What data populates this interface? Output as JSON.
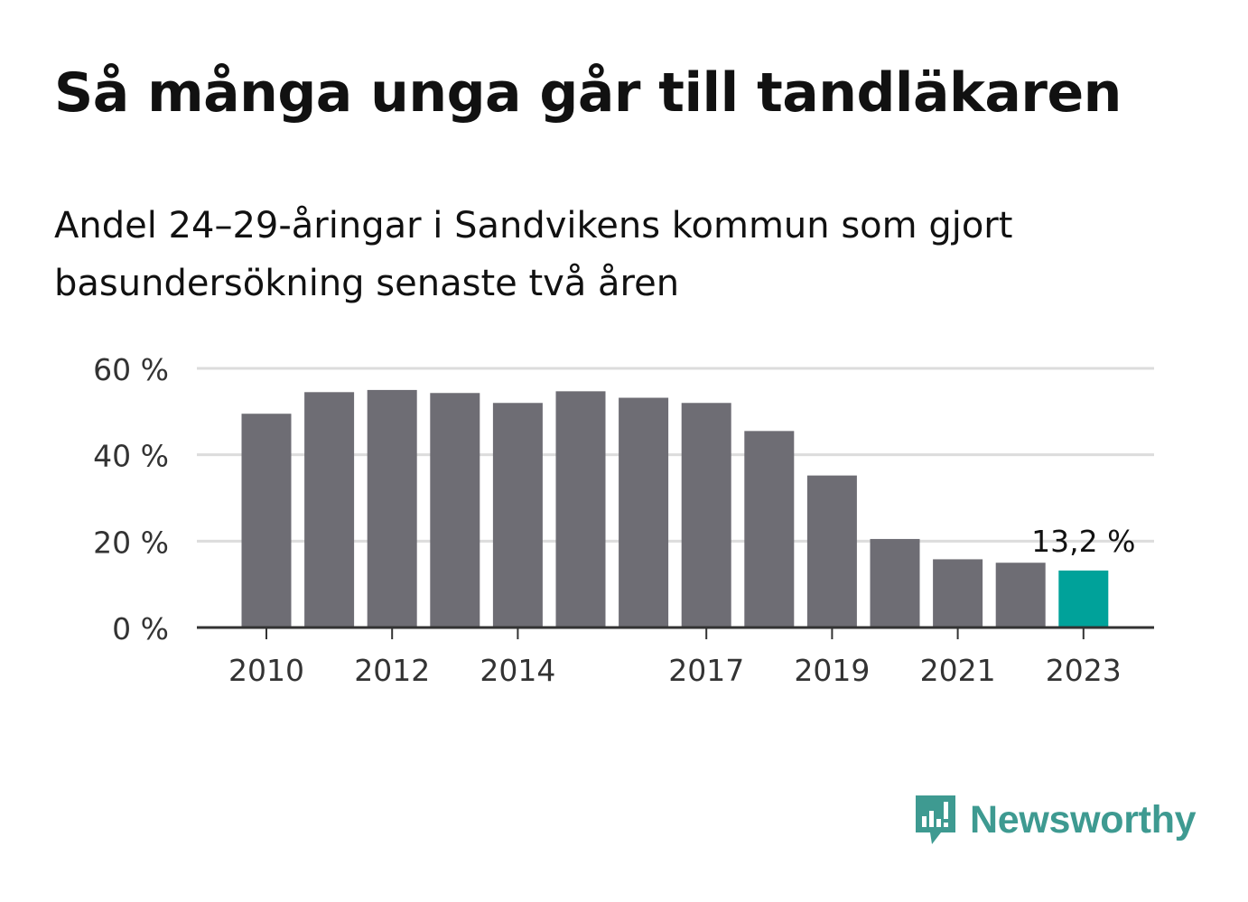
{
  "title": "Så många unga går till tandläkaren",
  "subtitle": "Andel 24–29-åringar i Sandvikens kommun som gjort basundersökning senaste två åren",
  "brand": {
    "name": "Newsworthy",
    "color": "#3e9a91",
    "icon": "newsworthy-logo-icon"
  },
  "colors": {
    "bar": "#6e6d74",
    "highlight": "#00a29a",
    "grid": "#dcdcdc",
    "axis": "#333333"
  },
  "chart_data": {
    "type": "bar",
    "categories": [
      "2010",
      "2011",
      "2012",
      "2013",
      "2014",
      "2015",
      "2016",
      "2017",
      "2018",
      "2019",
      "2020",
      "2021",
      "2022",
      "2023"
    ],
    "values": [
      49.5,
      54.5,
      55.0,
      54.3,
      52.0,
      54.7,
      53.2,
      52.0,
      45.5,
      35.2,
      20.5,
      15.8,
      15.0,
      13.2
    ],
    "x_tick_labels": [
      "2010",
      "2012",
      "2014",
      "2017",
      "2019",
      "2021",
      "2023"
    ],
    "y_ticks": [
      0,
      20,
      40,
      60
    ],
    "y_tick_labels": [
      "0 %",
      "20 %",
      "40 %",
      "60 %"
    ],
    "ylim": [
      0,
      60
    ],
    "xlabel": "",
    "ylabel": "",
    "highlight_index": 13,
    "data_label": "13,2 %",
    "grid": true
  }
}
